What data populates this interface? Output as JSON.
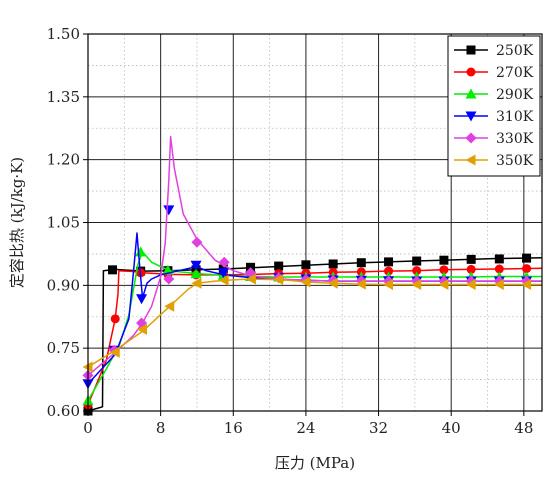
{
  "chart_data": {
    "type": "line",
    "title": "",
    "xlabel": "压力 (MPa)",
    "ylabel": "定容比热 (kJ/kg·K)",
    "xlim": [
      0,
      50
    ],
    "ylim": [
      0.6,
      1.5
    ],
    "x_ticks": [
      0,
      8,
      16,
      24,
      32,
      40,
      48
    ],
    "x_tick_labels": [
      "0",
      "8",
      "16",
      "24",
      "32",
      "40",
      "48"
    ],
    "y_ticks": [
      0.6,
      0.75,
      0.9,
      1.05,
      1.2,
      1.35,
      1.5
    ],
    "y_tick_labels": [
      "0.60",
      "0.75",
      "0.90",
      "1.05",
      "1.20",
      "1.35",
      "1.50"
    ],
    "grid": "major solid, minor dotted",
    "legend_position": "top-right",
    "series": [
      {
        "name": "250K",
        "color": "#000000",
        "marker": "square",
        "line": [
          [
            0,
            0.6
          ],
          [
            1.6,
            0.61
          ],
          [
            1.7,
            0.935
          ],
          [
            3,
            0.938
          ],
          [
            6,
            0.934
          ],
          [
            9,
            0.935
          ],
          [
            12,
            0.937
          ],
          [
            15,
            0.939
          ],
          [
            18,
            0.942
          ],
          [
            21,
            0.945
          ],
          [
            24,
            0.948
          ],
          [
            27,
            0.951
          ],
          [
            30,
            0.954
          ],
          [
            33,
            0.956
          ],
          [
            36,
            0.958
          ],
          [
            39,
            0.96
          ],
          [
            42,
            0.962
          ],
          [
            45,
            0.964
          ],
          [
            48,
            0.965
          ],
          [
            50,
            0.966
          ]
        ],
        "markers": [
          [
            0,
            0.6
          ],
          [
            2.7,
            0.937
          ],
          [
            5.8,
            0.934
          ],
          [
            8.8,
            0.935
          ],
          [
            11.9,
            0.937
          ],
          [
            14.9,
            0.939
          ],
          [
            17.9,
            0.943
          ],
          [
            21,
            0.946
          ],
          [
            24,
            0.949
          ],
          [
            27,
            0.951
          ],
          [
            30.1,
            0.954
          ],
          [
            33.1,
            0.956
          ],
          [
            36.2,
            0.958
          ],
          [
            39.2,
            0.96
          ],
          [
            42.2,
            0.962
          ],
          [
            45.3,
            0.963
          ],
          [
            48.3,
            0.965
          ]
        ]
      },
      {
        "name": "270K",
        "color": "#ff0000",
        "marker": "circle",
        "line": [
          [
            0,
            0.615
          ],
          [
            2,
            0.72
          ],
          [
            3,
            0.82
          ],
          [
            3.3,
            0.88
          ],
          [
            3.4,
            0.935
          ],
          [
            5,
            0.933
          ],
          [
            6,
            0.93
          ],
          [
            9,
            0.926
          ],
          [
            12,
            0.925
          ],
          [
            15,
            0.925
          ],
          [
            18,
            0.926
          ],
          [
            21,
            0.928
          ],
          [
            24,
            0.929
          ],
          [
            27,
            0.931
          ],
          [
            30,
            0.932
          ],
          [
            33,
            0.934
          ],
          [
            36,
            0.935
          ],
          [
            39,
            0.937
          ],
          [
            42,
            0.938
          ],
          [
            45,
            0.939
          ],
          [
            48,
            0.94
          ],
          [
            50,
            0.941
          ]
        ],
        "markers": [
          [
            0,
            0.615
          ],
          [
            3,
            0.82
          ],
          [
            5.8,
            0.93
          ],
          [
            8.8,
            0.926
          ],
          [
            11.9,
            0.925
          ],
          [
            14.9,
            0.925
          ],
          [
            17.9,
            0.926
          ],
          [
            21,
            0.928
          ],
          [
            24,
            0.929
          ],
          [
            27,
            0.931
          ],
          [
            30.1,
            0.932
          ],
          [
            33.1,
            0.934
          ],
          [
            36.2,
            0.935
          ],
          [
            39.2,
            0.937
          ],
          [
            42.2,
            0.938
          ],
          [
            45.3,
            0.939
          ],
          [
            48.3,
            0.94
          ]
        ]
      },
      {
        "name": "290K",
        "color": "#00ee00",
        "marker": "triangle-up",
        "line": [
          [
            0,
            0.625
          ],
          [
            2,
            0.7
          ],
          [
            3.5,
            0.76
          ],
          [
            4.5,
            0.83
          ],
          [
            5.5,
            0.95
          ],
          [
            6,
            0.98
          ],
          [
            7,
            0.955
          ],
          [
            9,
            0.935
          ],
          [
            12,
            0.928
          ],
          [
            15,
            0.924
          ],
          [
            18,
            0.921
          ],
          [
            21,
            0.92
          ],
          [
            24,
            0.92
          ],
          [
            27,
            0.92
          ],
          [
            30,
            0.92
          ],
          [
            33,
            0.92
          ],
          [
            36,
            0.92
          ],
          [
            39,
            0.92
          ],
          [
            42,
            0.92
          ],
          [
            45,
            0.921
          ],
          [
            48,
            0.921
          ],
          [
            50,
            0.921
          ]
        ],
        "markers": [
          [
            0,
            0.625
          ],
          [
            5.8,
            0.98
          ],
          [
            8.8,
            0.936
          ],
          [
            11.9,
            0.928
          ],
          [
            14.9,
            0.924
          ],
          [
            17.9,
            0.921
          ],
          [
            21,
            0.92
          ],
          [
            24,
            0.92
          ],
          [
            27,
            0.92
          ],
          [
            30.1,
            0.92
          ],
          [
            33.1,
            0.92
          ],
          [
            36.2,
            0.92
          ],
          [
            39.2,
            0.92
          ],
          [
            42.2,
            0.92
          ],
          [
            45.3,
            0.92
          ],
          [
            48.3,
            0.92
          ]
        ]
      },
      {
        "name": "310K",
        "color": "#0000ff",
        "marker": "triangle-down",
        "line": [
          [
            0,
            0.665
          ],
          [
            3,
            0.735
          ],
          [
            4.5,
            0.82
          ],
          [
            5,
            0.93
          ],
          [
            5.4,
            1.025
          ],
          [
            5.6,
            0.97
          ],
          [
            6,
            0.87
          ],
          [
            6.5,
            0.905
          ],
          [
            7,
            0.915
          ],
          [
            8,
            0.925
          ],
          [
            9,
            0.93
          ],
          [
            12,
            0.945
          ],
          [
            13,
            0.935
          ],
          [
            15,
            0.925
          ],
          [
            18,
            0.918
          ],
          [
            21,
            0.914
          ],
          [
            24,
            0.912
          ],
          [
            27,
            0.91
          ],
          [
            30,
            0.91
          ],
          [
            33,
            0.91
          ],
          [
            36,
            0.91
          ],
          [
            39,
            0.91
          ],
          [
            42,
            0.91
          ],
          [
            45,
            0.91
          ],
          [
            48,
            0.91
          ],
          [
            50,
            0.91
          ]
        ],
        "markers": [
          [
            0,
            0.665
          ],
          [
            2.9,
            0.745
          ],
          [
            5.9,
            0.868
          ],
          [
            8.9,
            1.08
          ],
          [
            11.9,
            0.948
          ],
          [
            14.9,
            0.93
          ],
          [
            17.9,
            0.922
          ],
          [
            21,
            0.918
          ],
          [
            24,
            0.915
          ],
          [
            27,
            0.913
          ],
          [
            30.1,
            0.912
          ],
          [
            33.1,
            0.911
          ],
          [
            36.2,
            0.91
          ],
          [
            39.2,
            0.91
          ],
          [
            42.2,
            0.91
          ],
          [
            45.3,
            0.91
          ],
          [
            48.3,
            0.91
          ]
        ]
      },
      {
        "name": "330K",
        "color": "#e040e0",
        "marker": "diamond",
        "line": [
          [
            0,
            0.685
          ],
          [
            3,
            0.74
          ],
          [
            5,
            0.78
          ],
          [
            6,
            0.81
          ],
          [
            7,
            0.85
          ],
          [
            8,
            0.92
          ],
          [
            8.5,
            1.0
          ],
          [
            8.9,
            1.15
          ],
          [
            9.1,
            1.255
          ],
          [
            9.5,
            1.18
          ],
          [
            10.5,
            1.07
          ],
          [
            12,
            1.01
          ],
          [
            14,
            0.96
          ],
          [
            16,
            0.935
          ],
          [
            18,
            0.922
          ],
          [
            21,
            0.915
          ],
          [
            24,
            0.912
          ],
          [
            27,
            0.91
          ],
          [
            30,
            0.91
          ],
          [
            33,
            0.91
          ],
          [
            36,
            0.91
          ],
          [
            39,
            0.91
          ],
          [
            42,
            0.91
          ],
          [
            45,
            0.91
          ],
          [
            48,
            0.91
          ],
          [
            50,
            0.91
          ]
        ],
        "markers": [
          [
            0,
            0.685
          ],
          [
            2.9,
            0.745
          ],
          [
            5.9,
            0.81
          ],
          [
            8.9,
            0.915
          ],
          [
            12,
            1.003
          ],
          [
            15,
            0.955
          ],
          [
            17.9,
            0.93
          ],
          [
            21,
            0.918
          ],
          [
            24,
            0.914
          ],
          [
            27,
            0.912
          ],
          [
            30.1,
            0.911
          ],
          [
            33.1,
            0.91
          ],
          [
            36.2,
            0.91
          ],
          [
            39.2,
            0.91
          ],
          [
            42.2,
            0.91
          ],
          [
            45.3,
            0.91
          ],
          [
            48.3,
            0.91
          ]
        ]
      },
      {
        "name": "350K",
        "color": "#e0a000",
        "marker": "triangle-left",
        "line": [
          [
            0,
            0.705
          ],
          [
            3,
            0.745
          ],
          [
            6,
            0.79
          ],
          [
            9,
            0.85
          ],
          [
            11,
            0.89
          ],
          [
            12,
            0.905
          ],
          [
            14,
            0.91
          ],
          [
            16,
            0.913
          ],
          [
            18,
            0.915
          ],
          [
            20,
            0.914
          ],
          [
            22,
            0.912
          ],
          [
            24,
            0.908
          ],
          [
            27,
            0.905
          ],
          [
            30,
            0.903
          ],
          [
            33,
            0.902
          ],
          [
            36,
            0.902
          ],
          [
            39,
            0.902
          ],
          [
            42,
            0.902
          ],
          [
            45,
            0.902
          ],
          [
            48,
            0.902
          ],
          [
            50,
            0.902
          ]
        ],
        "markers": [
          [
            0,
            0.705
          ],
          [
            3,
            0.74
          ],
          [
            6,
            0.795
          ],
          [
            9,
            0.85
          ],
          [
            12,
            0.905
          ],
          [
            15,
            0.912
          ],
          [
            18,
            0.915
          ],
          [
            21,
            0.914
          ],
          [
            24,
            0.908
          ],
          [
            27,
            0.905
          ],
          [
            30.1,
            0.903
          ],
          [
            33.1,
            0.902
          ],
          [
            36.2,
            0.902
          ],
          [
            39.2,
            0.902
          ],
          [
            42.2,
            0.902
          ],
          [
            45.3,
            0.902
          ],
          [
            48.3,
            0.902
          ]
        ]
      }
    ]
  }
}
